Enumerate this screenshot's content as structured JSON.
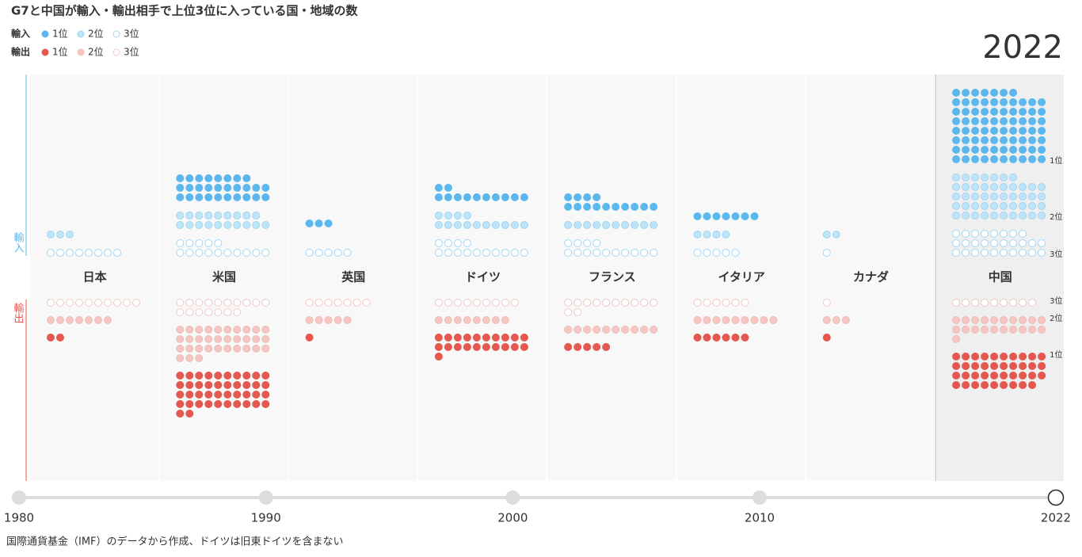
{
  "title": "G7と中国が輸入・輸出相手で上位3位に入っている国・地域の数",
  "legend": {
    "import": "輸入",
    "export": "輸出",
    "ranks": [
      "1位",
      "2位",
      "3位"
    ]
  },
  "countries": [
    {
      "name": "日本",
      "import": [
        0,
        3,
        8
      ],
      "export": [
        2,
        7,
        10
      ]
    },
    {
      "name": "米国",
      "import": [
        28,
        19,
        15
      ],
      "export": [
        42,
        33,
        17
      ]
    },
    {
      "name": "英国",
      "import": [
        3,
        0,
        5
      ],
      "export": [
        1,
        5,
        7
      ]
    },
    {
      "name": "ドイツ",
      "import": [
        12,
        14,
        14
      ],
      "export": [
        21,
        8,
        9
      ]
    },
    {
      "name": "フランス",
      "import": [
        14,
        10,
        14
      ],
      "export": [
        5,
        10,
        12
      ]
    },
    {
      "name": "イタリア",
      "import": [
        7,
        4,
        5
      ],
      "export": [
        6,
        9,
        6
      ]
    },
    {
      "name": "カナダ",
      "import": [
        0,
        2,
        1
      ],
      "export": [
        1,
        3,
        1
      ]
    },
    {
      "name": "中国",
      "import": [
        77,
        47,
        28
      ],
      "export": [
        39,
        21,
        9
      ]
    }
  ],
  "colors": {
    "import": [
      "#5bb8ee",
      "#bde4f8",
      "#ffffff"
    ],
    "import_stroke": [
      "#5bb8ee",
      "#9fd6f3",
      "#9fd6f3"
    ],
    "export": [
      "#e5574f",
      "#f5c6c2",
      "#ffffff"
    ],
    "export_stroke": [
      "#e5574f",
      "#f0bab5",
      "#f0c8c5"
    ]
  },
  "timeline": {
    "xlim": [
      1980,
      2022
    ],
    "xticks": [
      1980,
      1990,
      2000,
      2010,
      2022
    ],
    "current": 2022
  },
  "note": "国際通貨基金（IMF）のデータから作成、ドイツは旧東ドイツを含まない"
}
